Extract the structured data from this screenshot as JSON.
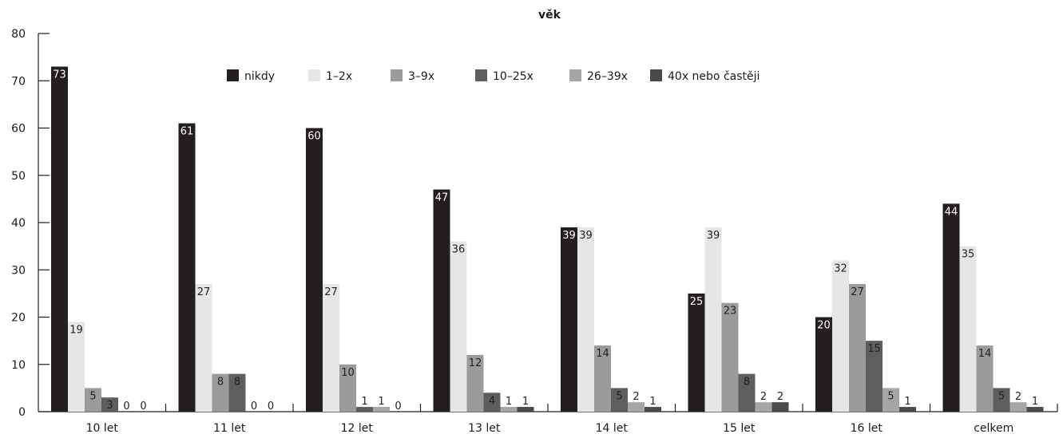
{
  "chart_data": {
    "type": "bar",
    "title": "věk",
    "xlabel": "",
    "ylabel": "",
    "ylim": [
      0,
      80
    ],
    "yticks": [
      0,
      10,
      20,
      30,
      40,
      50,
      60,
      70,
      80
    ],
    "grid": false,
    "legend_placement": "top-center",
    "categories": [
      "10 let",
      "11 let",
      "12 let",
      "13 let",
      "14 let",
      "15 let",
      "16 let",
      "celkem"
    ],
    "series": [
      {
        "name": "nikdy",
        "color": "#231f20",
        "label_color": "#ffffff",
        "values": [
          73,
          61,
          60,
          47,
          39,
          25,
          20,
          44
        ]
      },
      {
        "name": "1–2x",
        "color": "#e6e6e6",
        "label_color": "#231f20",
        "values": [
          19,
          27,
          27,
          36,
          39,
          39,
          32,
          35
        ]
      },
      {
        "name": "3–9x",
        "color": "#9b9b9b",
        "label_color": "#231f20",
        "values": [
          5,
          8,
          10,
          12,
          14,
          23,
          27,
          14
        ]
      },
      {
        "name": "10–25x",
        "color": "#5e5e5e",
        "label_color": "#231f20",
        "values": [
          3,
          8,
          1,
          4,
          5,
          8,
          15,
          5
        ]
      },
      {
        "name": "26–39x",
        "color": "#a6a6a6",
        "label_color": "#231f20",
        "values": [
          0,
          0,
          1,
          1,
          2,
          2,
          5,
          2
        ]
      },
      {
        "name": "40x  nebo častěji",
        "color": "#4a4a4a",
        "label_color": "#231f20",
        "values": [
          0,
          0,
          0,
          1,
          1,
          2,
          1,
          1
        ]
      }
    ]
  }
}
